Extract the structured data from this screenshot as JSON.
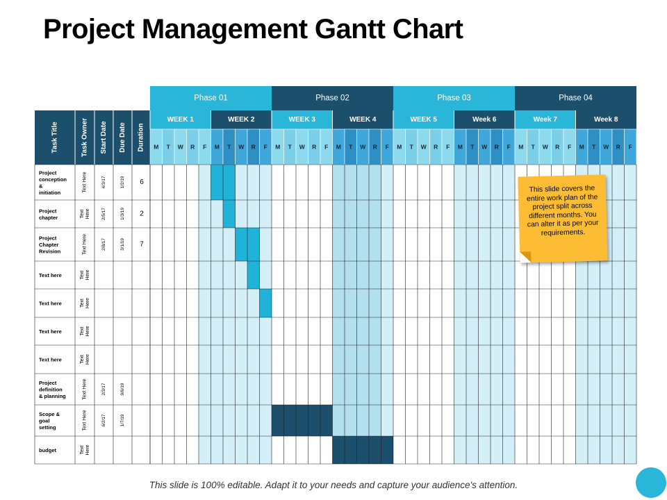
{
  "title": "Project Management Gantt Chart",
  "footer": "This slide is 100% editable. Adapt it to your needs and capture your audience's attention.",
  "note": {
    "text": "This slide covers the entire work plan of the project split across different months. You can alter it as per your requirements."
  },
  "colors": {
    "phase_light": "#29b6d8",
    "phase_dark": "#1b4f6b",
    "header_light": "#8dd9ee",
    "header_mid": "#3fa7d9",
    "bar_cyan": "#20b2d8",
    "bar_navy": "#1b4f6b",
    "grid_light": "#d4eff8",
    "grid_mid": "#b3e0ef",
    "note_yellow": "#fcbd34"
  },
  "table": {
    "headers": [
      "Task Title",
      "Task Owner",
      "Start Date",
      "Due Date",
      "Duration"
    ],
    "phases": [
      "Phase 01",
      "Phase 02",
      "Phase 03",
      "Phase 04"
    ],
    "weeks": [
      "WEEK 1",
      "WEEK 2",
      "WEEK 3",
      "WEEK 4",
      "WEEK 5",
      "Week 6",
      "Week 7",
      "Week 8"
    ],
    "days": [
      "M",
      "T",
      "W",
      "R",
      "F"
    ],
    "rows": [
      {
        "title": "Project conception & initiation",
        "owner": "Text Here",
        "start": "4/3/17",
        "due": "1/2/19",
        "duration": "6"
      },
      {
        "title": "Project chapter",
        "owner": "Text Here",
        "start": "2/5/17",
        "due": "1/3/19",
        "duration": "2"
      },
      {
        "title": "Project Chapter Revision",
        "owner": "Text Here",
        "start": "2/8/17",
        "due": "3/1/19",
        "duration": "7"
      },
      {
        "title": "Text here",
        "owner": "Text Here",
        "start": "",
        "due": "",
        "duration": ""
      },
      {
        "title": "Text here",
        "owner": "Text Here",
        "start": "",
        "due": "",
        "duration": ""
      },
      {
        "title": "Text here",
        "owner": "Text Here",
        "start": "",
        "due": "",
        "duration": ""
      },
      {
        "title": "Text here",
        "owner": "Text Here",
        "start": "",
        "due": "",
        "duration": ""
      },
      {
        "title": "Project definition & planning",
        "owner": "Text Here",
        "start": "2/3/17",
        "due": "9/6/19",
        "duration": ""
      },
      {
        "title": "Scope & goal setting",
        "owner": "Text Here",
        "start": "6/2/17",
        "due": "1/7/19",
        "duration": ""
      },
      {
        "title": "budget",
        "owner": "Text Here",
        "start": "",
        "due": "",
        "duration": ""
      }
    ],
    "bars": [
      {
        "row": 0,
        "start_day": 5,
        "end_day": 6,
        "color": "cyan"
      },
      {
        "row": 1,
        "start_day": 6,
        "end_day": 6,
        "color": "cyan"
      },
      {
        "row": 2,
        "start_day": 7,
        "end_day": 8,
        "color": "cyan"
      },
      {
        "row": 3,
        "start_day": 8,
        "end_day": 8,
        "color": "cyan"
      },
      {
        "row": 4,
        "start_day": 9,
        "end_day": 9,
        "color": "cyan"
      },
      {
        "row": 8,
        "start_day": 10,
        "end_day": 14,
        "color": "navy"
      },
      {
        "row": 9,
        "start_day": 15,
        "end_day": 19,
        "color": "navy"
      }
    ]
  }
}
